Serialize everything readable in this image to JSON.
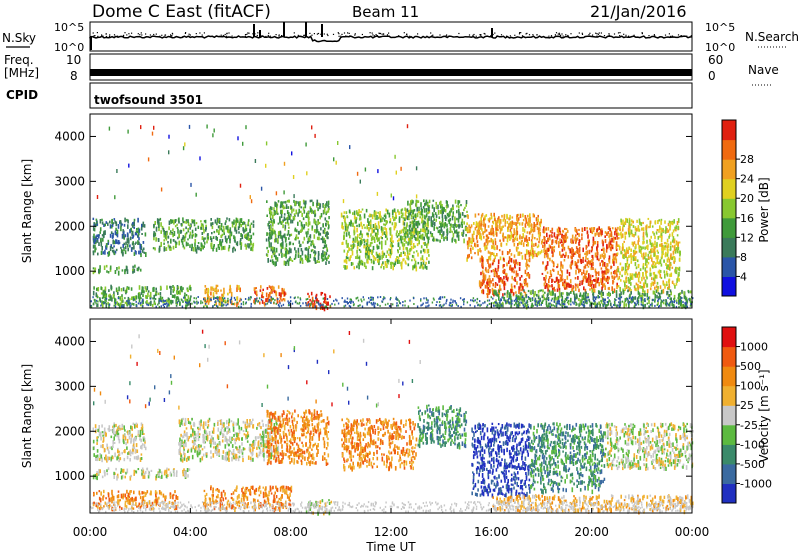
{
  "header": {
    "station": "Dome C East (fitACF)",
    "beam": "Beam 11",
    "date": "21/Jan/2016"
  },
  "left_labels": {
    "nsky": "N.Sky",
    "freq_line1": "Freq.",
    "freq_line2": "[MHz]",
    "cpid": "CPID"
  },
  "right_labels": {
    "nsearch": "N.Search",
    "nave": "Nave"
  },
  "nsky_ticks": {
    "top": "10^5",
    "bottom": "10^0"
  },
  "nsearch_ticks": {
    "top": "10^5",
    "bottom": "10^0"
  },
  "freq_ticks": {
    "top": "10",
    "bottom": "8"
  },
  "nave_ticks": {
    "top": "60",
    "bottom": "0"
  },
  "cpid_text": "twofsound 3501",
  "x_ticks": [
    "00:00",
    "04:00",
    "08:00",
    "12:00",
    "16:00",
    "20:00",
    "00:00"
  ],
  "x_axis_label": "Time UT",
  "chart_data": [
    {
      "type": "heatmap",
      "panel": "power",
      "ylabel": "Slant Range [km]",
      "y_ticks": [
        "1000",
        "2000",
        "3000",
        "4000"
      ],
      "ylim": [
        180,
        4500
      ],
      "xlim_hours": [
        0,
        24
      ],
      "colorbar_label": "Power [dB]",
      "colorbar_ticks": [
        "4",
        "8",
        "12",
        "16",
        "20",
        "24",
        "28"
      ],
      "colorbar_colors": [
        "#1010e0",
        "#2a55a8",
        "#3a7a5a",
        "#3f9a3a",
        "#88c830",
        "#e0d020",
        "#f0a020",
        "#f06a10",
        "#e02010"
      ],
      "echo_regions": [
        {
          "t0": 0.1,
          "t1": 2.2,
          "r0": 1400,
          "r1": 2200,
          "level": 2
        },
        {
          "t0": 0.1,
          "t1": 2.0,
          "r0": 1000,
          "r1": 1150,
          "level": 3
        },
        {
          "t0": 0.1,
          "t1": 4.0,
          "r0": 250,
          "r1": 700,
          "level": 3
        },
        {
          "t0": 2.5,
          "t1": 6.5,
          "r0": 1500,
          "r1": 2200,
          "level": 3
        },
        {
          "t0": 4.5,
          "t1": 6.0,
          "r0": 300,
          "r1": 700,
          "level": 6
        },
        {
          "t0": 6.5,
          "t1": 7.8,
          "r0": 300,
          "r1": 700,
          "level": 7
        },
        {
          "t0": 7.0,
          "t1": 9.5,
          "r0": 1200,
          "r1": 2600,
          "level": 3
        },
        {
          "t0": 8.6,
          "t1": 9.6,
          "r0": 200,
          "r1": 550,
          "level": 8
        },
        {
          "t0": 10.0,
          "t1": 13.5,
          "r0": 1100,
          "r1": 2400,
          "level": 4
        },
        {
          "t0": 12.5,
          "t1": 15.0,
          "r0": 1700,
          "r1": 2600,
          "level": 3
        },
        {
          "t0": 15.0,
          "t1": 18.0,
          "r0": 1300,
          "r1": 2300,
          "level": 6
        },
        {
          "t0": 15.5,
          "t1": 17.5,
          "r0": 500,
          "r1": 1300,
          "level": 7
        },
        {
          "t0": 18.0,
          "t1": 21.0,
          "r0": 600,
          "r1": 2000,
          "level": 7
        },
        {
          "t0": 21.0,
          "t1": 23.5,
          "r0": 600,
          "r1": 2200,
          "level": 5
        },
        {
          "t0": 16.0,
          "t1": 24.0,
          "r0": 250,
          "r1": 600,
          "level": 3
        }
      ]
    },
    {
      "type": "heatmap",
      "panel": "velocity",
      "ylabel": "Slant Range [km]",
      "y_ticks": [
        "1000",
        "2000",
        "3000",
        "4000"
      ],
      "ylim": [
        180,
        4500
      ],
      "xlim_hours": [
        0,
        24
      ],
      "colorbar_label": "Velocity [m s⁻¹]",
      "colorbar_ticks": [
        "1000",
        "500",
        "100",
        "25",
        "-25",
        "-100",
        "-500",
        "-1000"
      ],
      "colorbar_colors": [
        "#2030c0",
        "#3a6aa0",
        "#3a8a6a",
        "#5cba40",
        "#c8c8c8",
        "#f0b030",
        "#f08a10",
        "#f05a10",
        "#e01010"
      ],
      "echo_regions": [
        {
          "t0": 0.1,
          "t1": 2.2,
          "r0": 1400,
          "r1": 2200,
          "level": 4
        },
        {
          "t0": 0.1,
          "t1": 4.0,
          "r0": 1000,
          "r1": 1200,
          "level": 4
        },
        {
          "t0": 0.1,
          "t1": 3.5,
          "r0": 300,
          "r1": 700,
          "level": 6
        },
        {
          "t0": 3.5,
          "t1": 7.5,
          "r0": 1400,
          "r1": 2300,
          "level": 4
        },
        {
          "t0": 4.5,
          "t1": 8.0,
          "r0": 300,
          "r1": 800,
          "level": 6
        },
        {
          "t0": 7.0,
          "t1": 9.5,
          "r0": 1300,
          "r1": 2500,
          "level": 6
        },
        {
          "t0": 8.6,
          "t1": 9.6,
          "r0": 200,
          "r1": 500,
          "level": 4
        },
        {
          "t0": 10.0,
          "t1": 13.0,
          "r0": 1200,
          "r1": 2300,
          "level": 6
        },
        {
          "t0": 13.0,
          "t1": 15.0,
          "r0": 1700,
          "r1": 2600,
          "level": 2
        },
        {
          "t0": 15.2,
          "t1": 17.5,
          "r0": 600,
          "r1": 2200,
          "level": 0
        },
        {
          "t0": 17.5,
          "t1": 20.5,
          "r0": 700,
          "r1": 2200,
          "level": 2
        },
        {
          "t0": 20.5,
          "t1": 24.0,
          "r0": 1200,
          "r1": 2200,
          "level": 4
        },
        {
          "t0": 16.0,
          "t1": 24.0,
          "r0": 250,
          "r1": 600,
          "level": 5
        }
      ]
    }
  ]
}
